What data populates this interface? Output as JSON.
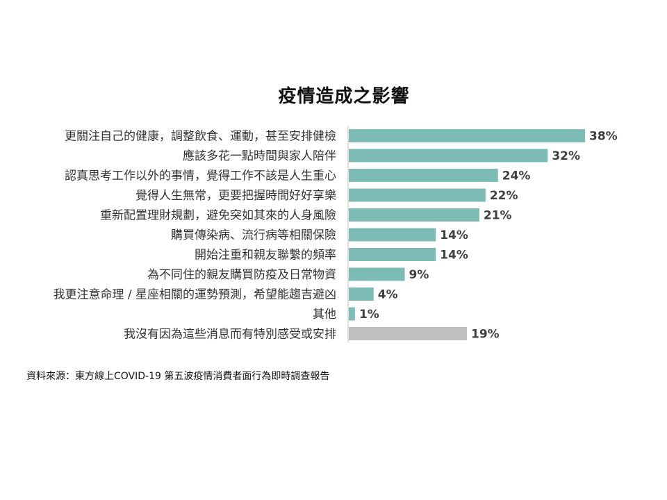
{
  "chart_data": {
    "type": "bar",
    "orientation": "horizontal",
    "title": "疫情造成之影響",
    "categories": [
      "更關注自己的健康，調整飲食、運動，甚至安排健檢",
      "應該多花一點時間與家人陪伴",
      "認真思考工作以外的事情，覺得工作不該是人生重心",
      "覺得人生無常，更要把握時間好好享樂",
      "重新配置理財規劃，避免突如其來的人身風險",
      "購買傳染病、流行病等相關保險",
      "開始注重和親友聯繫的頻率",
      "為不同住的親友購買防疫及日常物資",
      "我更注意命理 / 星座相關的運勢預測，希望能趨吉避凶",
      "其他",
      "我沒有因為這些消息而有特別感受或安排"
    ],
    "values": [
      38,
      32,
      24,
      22,
      21,
      14,
      14,
      9,
      4,
      1,
      19
    ],
    "value_labels": [
      "38%",
      "32%",
      "24%",
      "22%",
      "21%",
      "14%",
      "14%",
      "9%",
      "4%",
      "1%",
      "19%"
    ],
    "bar_colors": [
      "#7dbcb4",
      "#7dbcb4",
      "#7dbcb4",
      "#7dbcb4",
      "#7dbcb4",
      "#7dbcb4",
      "#7dbcb4",
      "#7dbcb4",
      "#7dbcb4",
      "#7dbcb4",
      "#bfbfbf"
    ],
    "xlim": [
      0,
      38
    ],
    "grid": false,
    "legend": false
  },
  "source_note": "資料來源：東方線上COVID-19 第五波疫情消費者面行為即時調查報告"
}
